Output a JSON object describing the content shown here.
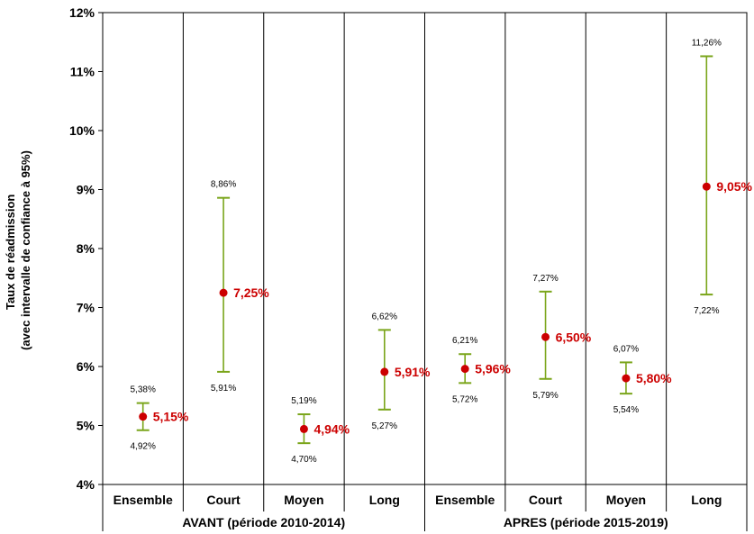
{
  "chart_data": {
    "type": "errorbar",
    "ylabel_line1": "Taux de réadmission",
    "ylabel_line2": "(avec intervalle de confiance à 95%)",
    "ylim": [
      4,
      12
    ],
    "yticks": [
      "4%",
      "5%",
      "6%",
      "7%",
      "8%",
      "9%",
      "10%",
      "11%",
      "12%"
    ],
    "grid": "vertical separators only",
    "marker_color": "#cc0000",
    "errorbar_color": "#7aa51a",
    "groups": [
      {
        "label": "AVANT (période 2010-2014)",
        "span": [
          0,
          4
        ]
      },
      {
        "label": "APRES (période 2015-2019)",
        "span": [
          4,
          8
        ]
      }
    ],
    "points": [
      {
        "category": "Ensemble",
        "value": 5.15,
        "value_label": "5,15%",
        "upper": 5.38,
        "upper_label": "5,38%",
        "lower": 4.92,
        "lower_label": "4,92%"
      },
      {
        "category": "Court",
        "value": 7.25,
        "value_label": "7,25%",
        "upper": 8.86,
        "upper_label": "8,86%",
        "lower": 5.91,
        "lower_label": "5,91%"
      },
      {
        "category": "Moyen",
        "value": 4.94,
        "value_label": "4,94%",
        "upper": 5.19,
        "upper_label": "5,19%",
        "lower": 4.7,
        "lower_label": "4,70%"
      },
      {
        "category": "Long",
        "value": 5.91,
        "value_label": "5,91%",
        "upper": 6.62,
        "upper_label": "6,62%",
        "lower": 5.27,
        "lower_label": "5,27%"
      },
      {
        "category": "Ensemble",
        "value": 5.96,
        "value_label": "5,96%",
        "upper": 6.21,
        "upper_label": "6,21%",
        "lower": 5.72,
        "lower_label": "5,72%"
      },
      {
        "category": "Court",
        "value": 6.5,
        "value_label": "6,50%",
        "upper": 7.27,
        "upper_label": "7,27%",
        "lower": 5.79,
        "lower_label": "5,79%"
      },
      {
        "category": "Moyen",
        "value": 5.8,
        "value_label": "5,80%",
        "upper": 6.07,
        "upper_label": "6,07%",
        "lower": 5.54,
        "lower_label": "5,54%"
      },
      {
        "category": "Long",
        "value": 9.05,
        "value_label": "9,05%",
        "upper": 11.26,
        "upper_label": "11,26%",
        "lower": 7.22,
        "lower_label": "7,22%"
      }
    ]
  }
}
